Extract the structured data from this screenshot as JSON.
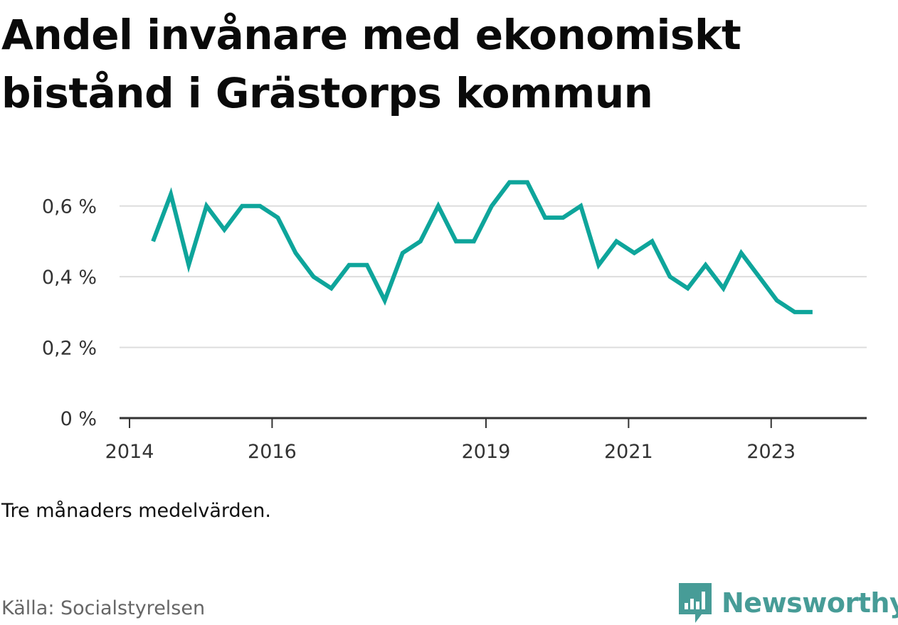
{
  "title": "Andel invånare med ekonomiskt bistånd i Grästorps kommun",
  "note": "Tre månaders medelvärden.",
  "source": "Källa: Socialstyrelsen",
  "brand": {
    "name": "Newsworthy",
    "icon": "newsworthy-logo-icon",
    "color": "#479c97"
  },
  "colors": {
    "line": "#0ea59b",
    "grid": "#dddddd",
    "axis": "#333333"
  },
  "chart_data": {
    "type": "line",
    "ylim": [
      0,
      0.7
    ],
    "y_ticks": [
      {
        "value": 0,
        "label": "0 %"
      },
      {
        "value": 0.2,
        "label": "0,2 %"
      },
      {
        "value": 0.4,
        "label": "0,4 %"
      },
      {
        "value": 0.6,
        "label": "0,6 %"
      }
    ],
    "xlim": [
      2013.94,
      2024.42
    ],
    "x_ticks": [
      {
        "value": 2014.08,
        "label": "2014"
      },
      {
        "value": 2016.08,
        "label": "2016"
      },
      {
        "value": 2019.08,
        "label": "2019"
      },
      {
        "value": 2021.08,
        "label": "2021"
      },
      {
        "value": 2023.08,
        "label": "2023"
      }
    ],
    "grid": true,
    "series": [
      {
        "x": [
          2014.41,
          2014.66,
          2014.91,
          2015.16,
          2015.41,
          2015.66,
          2015.91,
          2016.16,
          2016.41,
          2016.66,
          2016.91,
          2017.16,
          2017.41,
          2017.66,
          2017.91,
          2018.16,
          2018.41,
          2018.66,
          2018.91,
          2019.16,
          2019.41,
          2019.66,
          2019.91,
          2020.16,
          2020.41,
          2020.66,
          2020.91,
          2021.16,
          2021.41,
          2021.66,
          2021.91,
          2022.16,
          2022.41,
          2022.66,
          2022.91,
          2023.16,
          2023.41,
          2023.66
        ],
        "y": [
          0.5,
          0.633,
          0.433,
          0.6,
          0.533,
          0.6,
          0.6,
          0.567,
          0.467,
          0.4,
          0.367,
          0.433,
          0.433,
          0.333,
          0.467,
          0.5,
          0.6,
          0.5,
          0.5,
          0.6,
          0.667,
          0.667,
          0.567,
          0.567,
          0.6,
          0.433,
          0.5,
          0.467,
          0.5,
          0.4,
          0.367,
          0.433,
          0.367,
          0.467,
          0.4,
          0.333,
          0.3,
          0.3
        ]
      }
    ]
  }
}
